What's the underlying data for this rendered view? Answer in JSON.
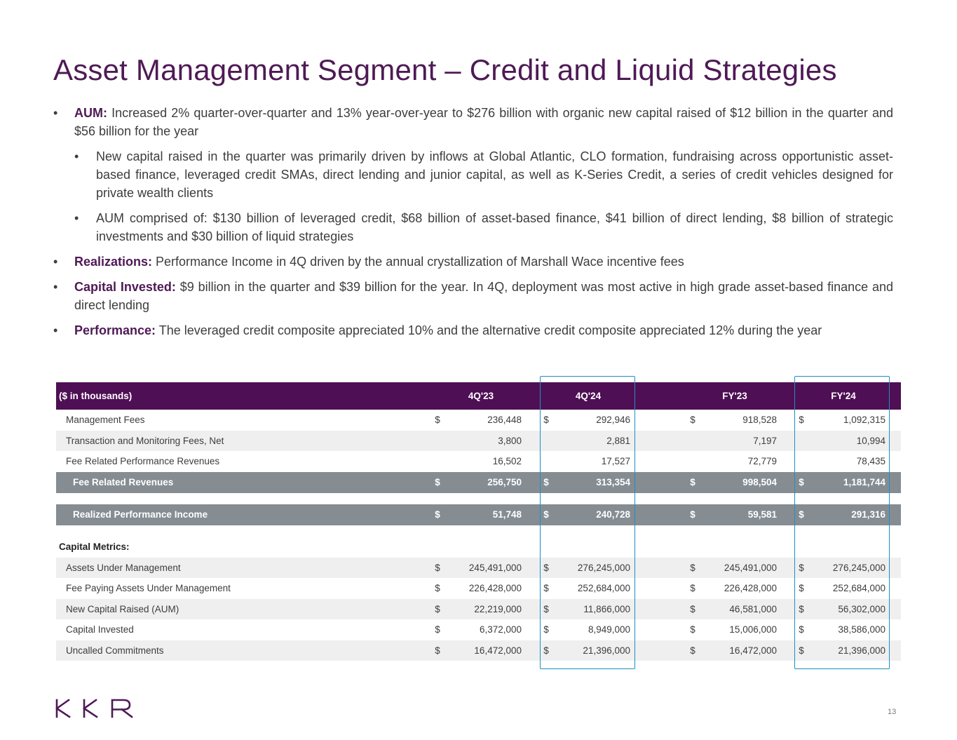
{
  "title": "Asset Management Segment – Credit and Liquid Strategies",
  "bullets": [
    {
      "label": "AUM:",
      "text": " Increased 2% quarter-over-quarter and 13% year-over-year to $276 billion with organic new capital raised of $12 billion in the quarter and $56 billion for the year"
    },
    {
      "text": "New capital raised in the quarter was primarily driven by inflows at Global Atlantic, CLO formation, fundraising across opportunistic asset-based finance, leveraged credit SMAs, direct lending and junior capital, as well as K-Series Credit, a series of credit vehicles designed for private wealth clients"
    },
    {
      "text": "AUM comprised of: $130 billion of leveraged credit, $68 billion of asset-based finance, $41 billion of direct lending, $8 billion of strategic investments and $30 billion of liquid strategies"
    },
    {
      "label": "Realizations:",
      "text": " Performance Income in 4Q driven by the annual crystallization of Marshall Wace incentive fees"
    },
    {
      "label": "Capital Invested:",
      "text": " $9 billion in the quarter and $39 billion for the year. In 4Q, deployment was most active in high grade asset-based finance and direct lending"
    },
    {
      "label": "Performance:",
      "text": " The leveraged credit composite appreciated 10% and the alternative credit composite appreciated 12% during the year"
    }
  ],
  "table": {
    "header": {
      "label": "($ in thousands)",
      "cols": [
        "4Q'23",
        "4Q'24",
        "FY'23",
        "FY'24"
      ]
    },
    "rows": [
      {
        "label": "Management Fees",
        "dollar": [
          "$",
          "$",
          "$",
          "$"
        ],
        "values": [
          "236,448",
          "292,946",
          "918,528",
          "1,092,315"
        ]
      },
      {
        "label": "Transaction and Monitoring Fees, Net",
        "dollar": [
          "",
          "",
          "",
          ""
        ],
        "values": [
          "3,800",
          "2,881",
          "7,197",
          "10,994"
        ]
      },
      {
        "label": "Fee Related Performance Revenues",
        "dollar": [
          "",
          "",
          "",
          ""
        ],
        "values": [
          "16,502",
          "17,527",
          "72,779",
          "78,435"
        ]
      },
      {
        "label": "Fee Related Revenues",
        "dollar": [
          "$",
          "$",
          "$",
          "$"
        ],
        "values": [
          "256,750",
          "313,354",
          "998,504",
          "1,181,744"
        ]
      },
      {
        "label": "Realized Performance Income",
        "dollar": [
          "$",
          "$",
          "$",
          "$"
        ],
        "values": [
          "51,748",
          "240,728",
          "59,581",
          "291,316"
        ]
      },
      {
        "label": "Capital Metrics:"
      },
      {
        "label": "Assets Under Management",
        "dollar": [
          "$",
          "$",
          "$",
          "$"
        ],
        "values": [
          "245,491,000",
          "276,245,000",
          "245,491,000",
          "276,245,000"
        ]
      },
      {
        "label": "Fee Paying Assets Under Management",
        "dollar": [
          "$",
          "$",
          "$",
          "$"
        ],
        "values": [
          "226,428,000",
          "252,684,000",
          "226,428,000",
          "252,684,000"
        ]
      },
      {
        "label": "New Capital Raised (AUM)",
        "dollar": [
          "$",
          "$",
          "$",
          "$"
        ],
        "values": [
          "22,219,000",
          "11,866,000",
          "46,581,000",
          "56,302,000"
        ]
      },
      {
        "label": "Capital Invested",
        "dollar": [
          "$",
          "$",
          "$",
          "$"
        ],
        "values": [
          "6,372,000",
          "8,949,000",
          "15,006,000",
          "38,586,000"
        ]
      },
      {
        "label": "Uncalled Commitments",
        "dollar": [
          "$",
          "$",
          "$",
          "$"
        ],
        "values": [
          "16,472,000",
          "21,396,000",
          "16,472,000",
          "21,396,000"
        ]
      }
    ]
  },
  "footer": {
    "logo": "KKR",
    "page": "13"
  },
  "colors": {
    "title": "#4e1a55",
    "header_bg": "#4e0f54",
    "summary_bg": "#858d93",
    "highlight_box": "#1f8fc4"
  }
}
